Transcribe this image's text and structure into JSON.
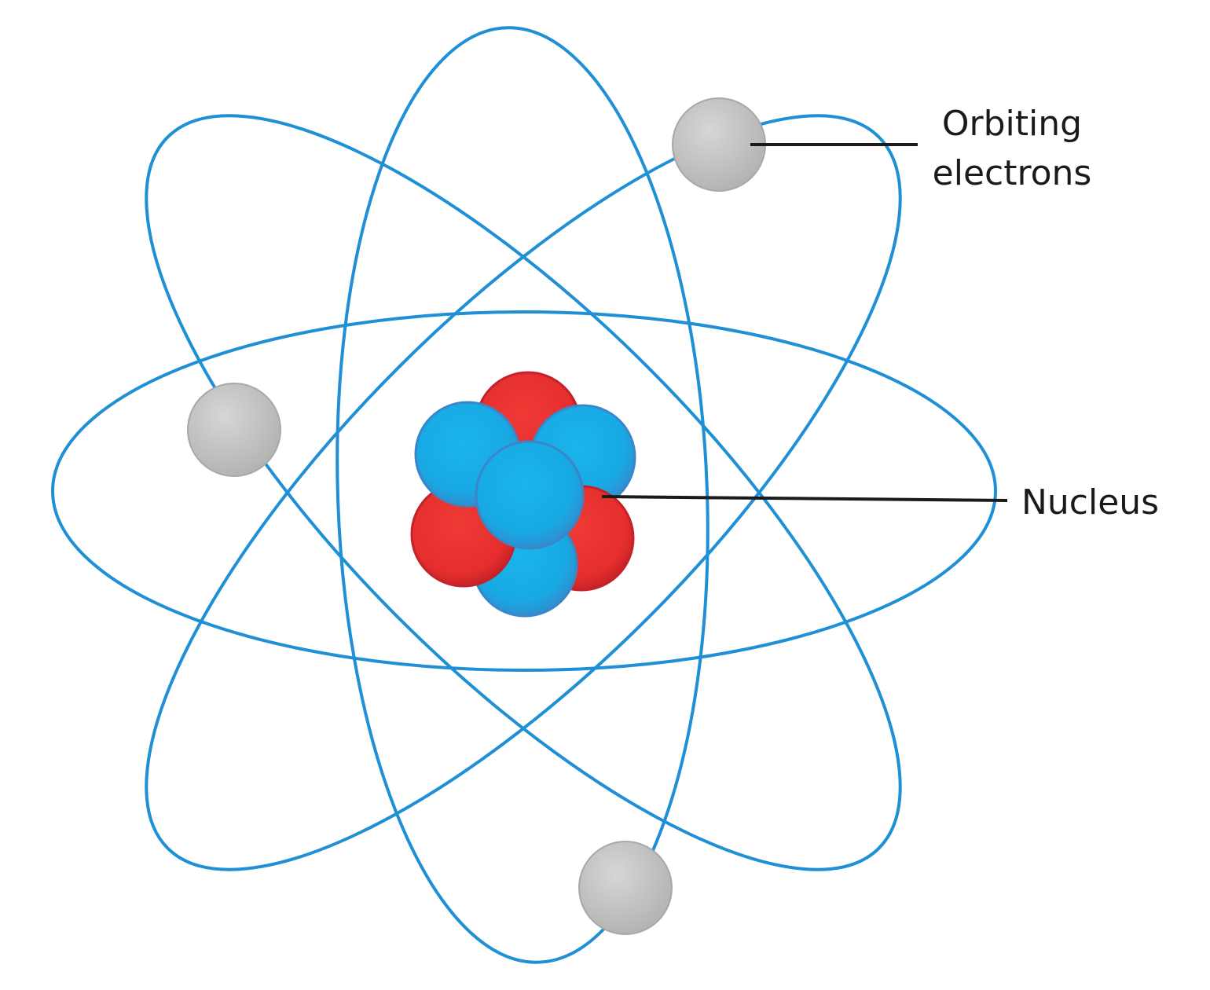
{
  "labels": {
    "electrons_line1": "Orbiting",
    "electrons_line2": "electrons",
    "nucleus": "Nucleus"
  },
  "colors": {
    "orbit": "#1f8fd6",
    "proton": "#e8302f",
    "proton_edge": "#c4222a",
    "neutron": "#17aee8",
    "neutron_edge": "#3a86c8",
    "electron": "#c4c4c2",
    "electron_edge": "#a8a8a6",
    "leader_line": "#1a1a1a",
    "text": "#1a1a1a"
  }
}
